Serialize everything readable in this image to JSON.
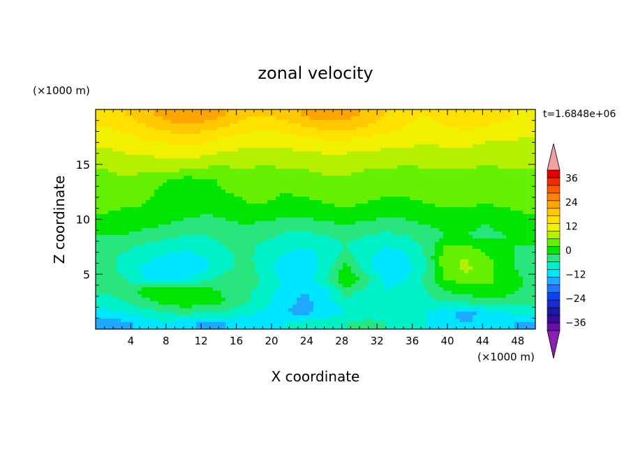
{
  "chart_data": {
    "type": "heatmap",
    "title": "zonal velocity",
    "xlabel": "X coordinate",
    "ylabel": "Z coordinate",
    "x_unit": "(×1000 m)",
    "y_unit": "(×1000 m)",
    "time_label": "t=1.6848e+06",
    "xlim": [
      0,
      50
    ],
    "ylim": [
      0,
      20
    ],
    "x_ticks": [
      4,
      8,
      12,
      16,
      20,
      24,
      28,
      32,
      36,
      40,
      44,
      48
    ],
    "y_ticks": [
      5,
      10,
      15
    ],
    "colorbar": {
      "levels": [
        -40,
        -36,
        -32,
        -28,
        -24,
        -20,
        -16,
        -12,
        -8,
        -4,
        0,
        4,
        8,
        12,
        16,
        20,
        24,
        28,
        32,
        36,
        40
      ],
      "colors": [
        "#6a0dad",
        "#3a0a9e",
        "#1a1aa0",
        "#1a2ad0",
        "#0a46f0",
        "#1e78ff",
        "#1ea8ff",
        "#00e5ff",
        "#00f0c8",
        "#28e67d",
        "#00e600",
        "#64f000",
        "#b4f000",
        "#f0f000",
        "#ffe100",
        "#ffc800",
        "#ffa500",
        "#ff8200",
        "#ff5a00",
        "#f02d00",
        "#e60000"
      ],
      "under_color": "#8b1eb4",
      "over_color": "#f5a0a0",
      "tick_labels": [
        "36",
        "24",
        "12",
        "0",
        "−12",
        "−24",
        "−36"
      ]
    },
    "field_rows": [
      {
        "z": 19.5,
        "u": [
          18,
          20,
          22,
          26,
          28,
          27,
          24,
          21,
          20,
          22,
          25,
          27,
          26,
          23,
          20,
          17,
          16,
          18,
          20,
          19,
          17,
          15
        ]
      },
      {
        "z": 18.5,
        "u": [
          16,
          18,
          20,
          22,
          23,
          22,
          20,
          18,
          17,
          18,
          20,
          22,
          22,
          20,
          18,
          16,
          15,
          16,
          17,
          16,
          15,
          14
        ]
      },
      {
        "z": 17.5,
        "u": [
          14,
          15,
          17,
          18,
          19,
          18,
          16,
          15,
          14,
          15,
          16,
          17,
          17,
          16,
          15,
          14,
          13,
          14,
          14,
          13,
          13,
          12
        ]
      },
      {
        "z": 16.5,
        "u": [
          12,
          13,
          14,
          14,
          15,
          14,
          13,
          12,
          12,
          12,
          13,
          13,
          13,
          13,
          12,
          12,
          11,
          12,
          12,
          11,
          11,
          10
        ]
      },
      {
        "z": 15.5,
        "u": [
          10,
          11,
          11,
          12,
          12,
          11,
          10,
          10,
          9,
          10,
          10,
          11,
          11,
          10,
          10,
          9,
          9,
          10,
          10,
          9,
          9,
          9
        ]
      },
      {
        "z": 14.5,
        "u": [
          8,
          9,
          9,
          9,
          8,
          7,
          7,
          8,
          7,
          8,
          8,
          9,
          9,
          8,
          8,
          7,
          8,
          8,
          8,
          7,
          8,
          8
        ]
      },
      {
        "z": 13.5,
        "u": [
          7,
          7,
          6,
          4,
          2,
          3,
          5,
          6,
          6,
          5,
          6,
          7,
          7,
          6,
          7,
          6,
          7,
          7,
          7,
          6,
          7,
          7
        ]
      },
      {
        "z": 12.5,
        "u": [
          6,
          6,
          5,
          3,
          1,
          2,
          4,
          5,
          5,
          4,
          5,
          6,
          6,
          5,
          5,
          5,
          6,
          6,
          6,
          5,
          6,
          6
        ]
      },
      {
        "z": 11.5,
        "u": [
          5,
          5,
          4,
          3,
          2,
          1,
          2,
          4,
          4,
          3,
          3,
          4,
          5,
          4,
          3,
          3,
          4,
          5,
          5,
          4,
          5,
          5
        ]
      },
      {
        "z": 10.5,
        "u": [
          4,
          3,
          3,
          2,
          1,
          0,
          1,
          2,
          2,
          1,
          1,
          2,
          3,
          2,
          1,
          1,
          2,
          3,
          3,
          2,
          3,
          4
        ]
      },
      {
        "z": 9.5,
        "u": [
          2,
          2,
          1,
          0,
          -1,
          -2,
          -1,
          0,
          -1,
          -2,
          -2,
          -1,
          0,
          -1,
          -2,
          -1,
          0,
          1,
          1,
          0,
          1,
          2
        ]
      },
      {
        "z": 8.5,
        "u": [
          0,
          0,
          -2,
          -3,
          -4,
          -4,
          -3,
          -2,
          -3,
          -5,
          -5,
          -4,
          -3,
          -4,
          -5,
          -4,
          -2,
          0,
          0,
          -1,
          0,
          1
        ]
      },
      {
        "z": 7.5,
        "u": [
          -2,
          -3,
          -5,
          -6,
          -7,
          -6,
          -4,
          -3,
          -5,
          -7,
          -8,
          -6,
          -4,
          -6,
          -8,
          -7,
          -3,
          4,
          5,
          2,
          0,
          0
        ]
      },
      {
        "z": 6.5,
        "u": [
          -3,
          -5,
          -7,
          -9,
          -10,
          -8,
          -5,
          -3,
          -6,
          -9,
          -10,
          -7,
          -2,
          -7,
          -10,
          -9,
          -4,
          7,
          8,
          5,
          1,
          -1
        ]
      },
      {
        "z": 5.5,
        "u": [
          -2,
          -6,
          -9,
          -11,
          -12,
          -9,
          -5,
          -2,
          -7,
          -10,
          -11,
          -6,
          2,
          -6,
          -12,
          -10,
          -4,
          6,
          9,
          6,
          2,
          -2
        ]
      },
      {
        "z": 4.5,
        "u": [
          -1,
          -4,
          -8,
          -9,
          -8,
          -5,
          -2,
          0,
          -5,
          -9,
          -10,
          -5,
          4,
          -2,
          -9,
          -8,
          -3,
          4,
          6,
          5,
          3,
          0
        ]
      },
      {
        "z": 3.5,
        "u": [
          -3,
          -2,
          2,
          4,
          4,
          2,
          -1,
          -3,
          -6,
          -10,
          -12,
          -9,
          -2,
          -5,
          -8,
          -7,
          -4,
          0,
          2,
          3,
          2,
          -1
        ]
      },
      {
        "z": 2.5,
        "u": [
          -6,
          -4,
          -1,
          2,
          3,
          2,
          0,
          -3,
          -7,
          -11,
          -13,
          -10,
          -5,
          -6,
          -7,
          -6,
          -5,
          -4,
          -3,
          -2,
          -2,
          -3
        ]
      },
      {
        "z": 1.5,
        "u": [
          -9,
          -8,
          -6,
          -4,
          -3,
          -4,
          -5,
          -7,
          -9,
          -12,
          -13,
          -11,
          -8,
          -6,
          -5,
          -6,
          -8,
          -10,
          -14,
          -10,
          -8,
          -7
        ]
      },
      {
        "z": 0.5,
        "u": [
          -16,
          -13,
          -10,
          -9,
          -11,
          -13,
          -12,
          -10,
          -9,
          -8,
          -6,
          -5,
          -4,
          -3,
          -4,
          -6,
          -8,
          -10,
          -12,
          -11,
          -10,
          -14
        ]
      }
    ]
  }
}
